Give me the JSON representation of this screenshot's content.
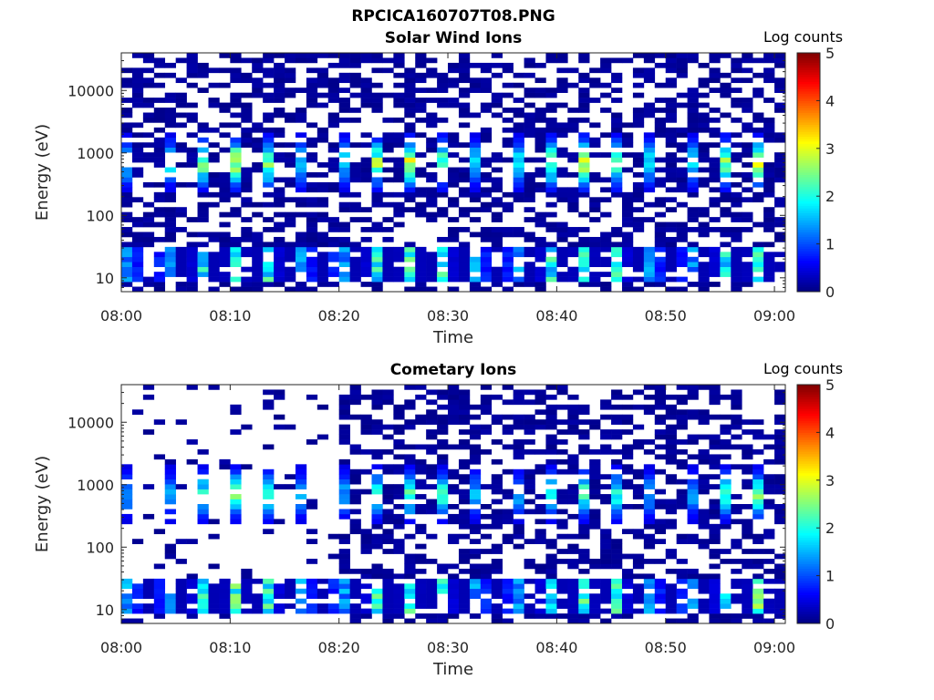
{
  "figure": {
    "title": "RPCICA160707T08.PNG"
  },
  "chart_data": [
    {
      "type": "heatmap",
      "title": "Solar Wind Ions",
      "xlabel": "Time",
      "ylabel": "Energy (eV)",
      "x_ticks": [
        "08:00",
        "08:10",
        "08:20",
        "08:30",
        "08:40",
        "08:50",
        "09:00"
      ],
      "x_range": [
        "08:00",
        "09:01"
      ],
      "y_ticks": [
        "10",
        "100",
        "1000",
        "10000"
      ],
      "y_range": [
        6,
        40000
      ],
      "y_scale": "log",
      "colorbar": {
        "label": "Log counts",
        "ticks": [
          "0",
          "1",
          "2",
          "3",
          "4",
          "5"
        ],
        "range": [
          0,
          5
        ],
        "colormap": "jet"
      },
      "n_time_bins": 61,
      "n_energy_bins": 48,
      "features": {
        "solar_wind_peak_energy": 700,
        "solar_wind_secondary_energy": 1600,
        "peak_log_counts": 3.0,
        "low_energy_band": [
          8,
          30
        ],
        "low_energy_peak_log_counts": 2.5,
        "pulse_period_min": 3.2
      }
    },
    {
      "type": "heatmap",
      "title": "Cometary Ions",
      "xlabel": "Time",
      "ylabel": "Energy (eV)",
      "x_ticks": [
        "08:00",
        "08:10",
        "08:20",
        "08:30",
        "08:40",
        "08:50",
        "09:00"
      ],
      "x_range": [
        "08:00",
        "09:01"
      ],
      "y_ticks": [
        "10",
        "100",
        "1000",
        "10000"
      ],
      "y_range": [
        6,
        40000
      ],
      "y_scale": "log",
      "colorbar": {
        "label": "Log counts",
        "ticks": [
          "0",
          "1",
          "2",
          "3",
          "4",
          "5"
        ],
        "range": [
          0,
          5
        ],
        "colormap": "jet"
      },
      "n_time_bins": 61,
      "n_energy_bins": 48,
      "features": {
        "sparse_until": "08:20",
        "solar_wind_peak_energy": 700,
        "peak_log_counts": 2.3,
        "low_energy_band": [
          8,
          30
        ],
        "low_energy_peak_log_counts": 2.6,
        "pulse_period_min": 3.2
      }
    }
  ]
}
